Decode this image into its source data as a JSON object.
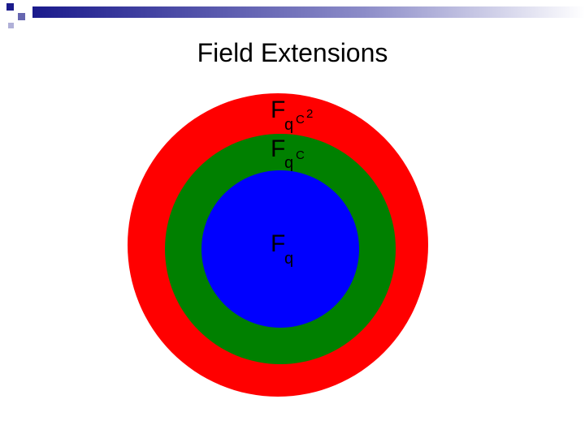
{
  "header": {
    "title": "Field Extensions"
  },
  "nodes": [
    {
      "base": "F",
      "sub": "q",
      "sup": "C",
      "sup_exp": "2"
    },
    {
      "base": "F",
      "sub": "q",
      "sup": "C"
    },
    {
      "base": "F",
      "sub": "q"
    }
  ]
}
